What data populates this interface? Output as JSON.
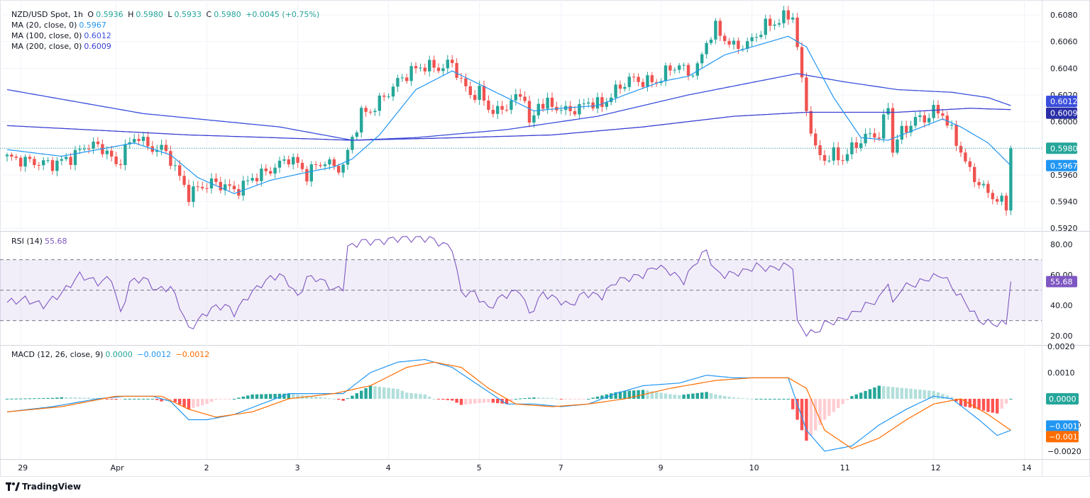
{
  "legend": {
    "symbol": "NZD/USD Spot, 1h",
    "open_label": "O",
    "open": "0.5936",
    "high_label": "H",
    "high": "0.5980",
    "low_label": "L",
    "low": "0.5933",
    "close_label": "C",
    "close": "0.5980",
    "change": "+0.0045 (+0.75%)",
    "ma20_label": "MA (20, close, 0)",
    "ma20_value": "0.5967",
    "ma100_label": "MA (100, close, 0)",
    "ma100_value": "0.6012",
    "ma200_label": "MA (200, close, 0)",
    "ma200_value": "0.6009",
    "rsi_label": "RSI (14)",
    "rsi_value": "55.68",
    "macd_label": "MACD (12, 26, close, 9)",
    "macd_hist": "0.0000",
    "macd_line": "−0.0012",
    "macd_signal": "−0.0012"
  },
  "footer": {
    "brand": "TradingView"
  },
  "colors": {
    "up": "#26a69a",
    "down": "#ef5350",
    "ma20": "#2196f3",
    "ma100": "#3b4fdc",
    "ma200": "#3a3fd1",
    "rsi": "#7e57c2",
    "macd": "#2196f3",
    "signal": "#ff6d00",
    "hist_up_strong": "#26a69a",
    "hist_up_weak": "#b2dfdb",
    "hist_down_strong": "#ff5252",
    "hist_down_weak": "#ffcdd2"
  },
  "chart_data": [
    {
      "type": "candlestick",
      "title": "NZD/USD Spot, 1h",
      "x_tick_labels": [
        "29",
        "Apr",
        "2",
        "3",
        "4",
        "5",
        "7",
        "9",
        "10",
        "11",
        "12",
        "14"
      ],
      "y_ticks": [
        0.592,
        0.594,
        0.596,
        0.598,
        0.6,
        0.602,
        0.604,
        0.606,
        0.608
      ],
      "ylim": [
        0.5918,
        0.6088
      ],
      "price_badges": [
        {
          "label": "0.6012",
          "value": 0.6012,
          "color": "#3b4fdc"
        },
        {
          "label": "0.6009",
          "value": 0.6009,
          "color": "#2a2fa8"
        },
        {
          "label": "0.5980",
          "value": 0.598,
          "color": "#26a69a"
        },
        {
          "label": "0.5967",
          "value": 0.5967,
          "color": "#2196f3"
        }
      ],
      "close_path": [
        [
          0,
          0.5973
        ],
        [
          5,
          0.597
        ],
        [
          10,
          0.5968
        ],
        [
          14,
          0.5973
        ],
        [
          18,
          0.5983
        ],
        [
          20,
          0.5981
        ],
        [
          22,
          0.5978
        ],
        [
          24,
          0.5966
        ],
        [
          26,
          0.598
        ],
        [
          29,
          0.599
        ],
        [
          31,
          0.598
        ],
        [
          34,
          0.598
        ],
        [
          36,
          0.5972
        ],
        [
          38,
          0.5958
        ],
        [
          40,
          0.5945
        ],
        [
          42,
          0.595
        ],
        [
          45,
          0.5954
        ],
        [
          48,
          0.5952
        ],
        [
          50,
          0.5948
        ],
        [
          52,
          0.5952
        ],
        [
          54,
          0.5958
        ],
        [
          57,
          0.5962
        ],
        [
          60,
          0.5968
        ],
        [
          62,
          0.5973
        ],
        [
          64,
          0.5968
        ],
        [
          66,
          0.596
        ],
        [
          68,
          0.5967
        ],
        [
          70,
          0.597
        ],
        [
          72,
          0.5966
        ],
        [
          74,
          0.5966
        ],
        [
          76,
          0.5988
        ],
        [
          78,
          0.6006
        ],
        [
          80,
          0.6008
        ],
        [
          82,
          0.6015
        ],
        [
          84,
          0.6022
        ],
        [
          86,
          0.603
        ],
        [
          89,
          0.6038
        ],
        [
          92,
          0.6042
        ],
        [
          95,
          0.604
        ],
        [
          98,
          0.6044
        ],
        [
          100,
          0.603
        ],
        [
          102,
          0.602
        ],
        [
          104,
          0.6022
        ],
        [
          106,
          0.601
        ],
        [
          108,
          0.6007
        ],
        [
          110,
          0.6012
        ],
        [
          112,
          0.6018
        ],
        [
          114,
          0.602
        ],
        [
          115,
          0.5995
        ],
        [
          117,
          0.6014
        ],
        [
          120,
          0.6012
        ],
        [
          123,
          0.6008
        ],
        [
          126,
          0.601
        ],
        [
          128,
          0.6015
        ],
        [
          131,
          0.6012
        ],
        [
          133,
          0.602
        ],
        [
          135,
          0.6026
        ],
        [
          137,
          0.6032
        ],
        [
          140,
          0.603
        ],
        [
          143,
          0.603
        ],
        [
          146,
          0.604
        ],
        [
          148,
          0.6042
        ],
        [
          150,
          0.6036
        ],
        [
          152,
          0.604
        ],
        [
          154,
          0.606
        ],
        [
          156,
          0.607
        ],
        [
          158,
          0.6062
        ],
        [
          160,
          0.6056
        ],
        [
          163,
          0.6058
        ],
        [
          165,
          0.6065
        ],
        [
          167,
          0.6072
        ],
        [
          169,
          0.6074
        ],
        [
          171,
          0.6078
        ],
        [
          173,
          0.608
        ],
        [
          175,
          0.603
        ],
        [
          176,
          0.601
        ],
        [
          178,
          0.5978
        ],
        [
          180,
          0.5972
        ],
        [
          182,
          0.5975
        ],
        [
          184,
          0.5972
        ],
        [
          186,
          0.598
        ],
        [
          188,
          0.5986
        ],
        [
          190,
          0.599
        ],
        [
          192,
          0.599
        ],
        [
          193,
          0.6
        ],
        [
          194,
          0.6012
        ],
        [
          195,
          0.5978
        ],
        [
          196,
          0.5988
        ],
        [
          198,
          0.5995
        ],
        [
          200,
          0.6002
        ],
        [
          202,
          0.6002
        ],
        [
          204,
          0.6008
        ],
        [
          206,
          0.6006
        ],
        [
          208,
          0.5992
        ],
        [
          210,
          0.5978
        ],
        [
          212,
          0.5962
        ],
        [
          214,
          0.5954
        ],
        [
          216,
          0.5946
        ],
        [
          218,
          0.5942
        ],
        [
          220,
          0.5936
        ],
        [
          221,
          0.598
        ]
      ],
      "ma20": [
        [
          0,
          0.5979
        ],
        [
          12,
          0.5974
        ],
        [
          20,
          0.5979
        ],
        [
          28,
          0.5984
        ],
        [
          36,
          0.5975
        ],
        [
          42,
          0.5958
        ],
        [
          50,
          0.5946
        ],
        [
          58,
          0.5956
        ],
        [
          66,
          0.5962
        ],
        [
          72,
          0.5966
        ],
        [
          76,
          0.5972
        ],
        [
          82,
          0.599
        ],
        [
          90,
          0.6024
        ],
        [
          98,
          0.6038
        ],
        [
          104,
          0.6028
        ],
        [
          110,
          0.6018
        ],
        [
          116,
          0.6008
        ],
        [
          122,
          0.601
        ],
        [
          130,
          0.6012
        ],
        [
          136,
          0.602
        ],
        [
          144,
          0.603
        ],
        [
          150,
          0.6034
        ],
        [
          158,
          0.605
        ],
        [
          166,
          0.6058
        ],
        [
          172,
          0.6064
        ],
        [
          176,
          0.6056
        ],
        [
          182,
          0.6018
        ],
        [
          188,
          0.5988
        ],
        [
          194,
          0.5986
        ],
        [
          200,
          0.5994
        ],
        [
          206,
          0.6002
        ],
        [
          210,
          0.5996
        ],
        [
          216,
          0.5984
        ],
        [
          221,
          0.5967
        ]
      ],
      "ma100": [
        [
          0,
          0.6024
        ],
        [
          30,
          0.6006
        ],
        [
          60,
          0.5996
        ],
        [
          76,
          0.5986
        ],
        [
          90,
          0.5988
        ],
        [
          110,
          0.5994
        ],
        [
          130,
          0.6004
        ],
        [
          150,
          0.602
        ],
        [
          165,
          0.603
        ],
        [
          174,
          0.6036
        ],
        [
          184,
          0.603
        ],
        [
          196,
          0.6024
        ],
        [
          208,
          0.6022
        ],
        [
          216,
          0.6018
        ],
        [
          221,
          0.6012
        ]
      ],
      "ma200": [
        [
          0,
          0.5997
        ],
        [
          40,
          0.599
        ],
        [
          76,
          0.5986
        ],
        [
          100,
          0.5988
        ],
        [
          120,
          0.599
        ],
        [
          140,
          0.5996
        ],
        [
          160,
          0.6004
        ],
        [
          176,
          0.6007
        ],
        [
          196,
          0.6007
        ],
        [
          212,
          0.601
        ],
        [
          221,
          0.6009
        ]
      ]
    },
    {
      "type": "line",
      "title": "RSI (14)",
      "y_ticks": [
        20,
        40,
        60,
        80
      ],
      "ylim": [
        14,
        88
      ],
      "band": [
        30,
        70
      ],
      "midline": 50,
      "rsi": [
        [
          0,
          42
        ],
        [
          4,
          44
        ],
        [
          8,
          40
        ],
        [
          12,
          48
        ],
        [
          16,
          60
        ],
        [
          20,
          55
        ],
        [
          23,
          58
        ],
        [
          25,
          34
        ],
        [
          27,
          55
        ],
        [
          30,
          58
        ],
        [
          33,
          50
        ],
        [
          36,
          52
        ],
        [
          38,
          40
        ],
        [
          40,
          24
        ],
        [
          42,
          30
        ],
        [
          45,
          38
        ],
        [
          48,
          40
        ],
        [
          50,
          35
        ],
        [
          53,
          46
        ],
        [
          56,
          54
        ],
        [
          58,
          58
        ],
        [
          60,
          60
        ],
        [
          62,
          55
        ],
        [
          64,
          45
        ],
        [
          66,
          58
        ],
        [
          68,
          58
        ],
        [
          70,
          55
        ],
        [
          72,
          50
        ],
        [
          74,
          52
        ],
        [
          75,
          78
        ],
        [
          78,
          82
        ],
        [
          82,
          82
        ],
        [
          86,
          84
        ],
        [
          90,
          84
        ],
        [
          93,
          84
        ],
        [
          96,
          80
        ],
        [
          98,
          78
        ],
        [
          100,
          48
        ],
        [
          103,
          48
        ],
        [
          106,
          38
        ],
        [
          109,
          46
        ],
        [
          113,
          50
        ],
        [
          115,
          34
        ],
        [
          118,
          48
        ],
        [
          121,
          44
        ],
        [
          124,
          40
        ],
        [
          127,
          48
        ],
        [
          131,
          46
        ],
        [
          134,
          56
        ],
        [
          137,
          58
        ],
        [
          140,
          60
        ],
        [
          143,
          66
        ],
        [
          146,
          62
        ],
        [
          149,
          56
        ],
        [
          152,
          70
        ],
        [
          154,
          76
        ],
        [
          156,
          62
        ],
        [
          158,
          60
        ],
        [
          162,
          62
        ],
        [
          165,
          66
        ],
        [
          168,
          64
        ],
        [
          171,
          66
        ],
        [
          173,
          66
        ],
        [
          174,
          28
        ],
        [
          176,
          22
        ],
        [
          178,
          22
        ],
        [
          180,
          28
        ],
        [
          183,
          30
        ],
        [
          186,
          34
        ],
        [
          189,
          40
        ],
        [
          192,
          44
        ],
        [
          194,
          56
        ],
        [
          195,
          40
        ],
        [
          197,
          52
        ],
        [
          200,
          54
        ],
        [
          203,
          58
        ],
        [
          206,
          60
        ],
        [
          208,
          52
        ],
        [
          211,
          42
        ],
        [
          214,
          30
        ],
        [
          217,
          28
        ],
        [
          220,
          28
        ],
        [
          221,
          55.68
        ]
      ]
    },
    {
      "type": "line",
      "title": "MACD (12, 26, close, 9)",
      "y_ticks": [
        -0.002,
        -0.001,
        0.001,
        0.002
      ],
      "ylim": [
        -0.0023,
        0.002
      ],
      "macd": [
        [
          0,
          -0.0005
        ],
        [
          10,
          -0.0003
        ],
        [
          20,
          0.0
        ],
        [
          26,
          0.0001
        ],
        [
          32,
          0.0001
        ],
        [
          36,
          -0.0001
        ],
        [
          40,
          -0.0008
        ],
        [
          44,
          -0.0008
        ],
        [
          50,
          -0.0006
        ],
        [
          56,
          -0.0002
        ],
        [
          62,
          0.0002
        ],
        [
          68,
          0.0002
        ],
        [
          74,
          0.0002
        ],
        [
          80,
          0.001
        ],
        [
          86,
          0.0014
        ],
        [
          92,
          0.0015
        ],
        [
          98,
          0.0012
        ],
        [
          104,
          0.0005
        ],
        [
          110,
          -0.0002
        ],
        [
          116,
          -0.0002
        ],
        [
          122,
          -0.0003
        ],
        [
          128,
          -0.0002
        ],
        [
          134,
          0.0002
        ],
        [
          140,
          0.0005
        ],
        [
          148,
          0.0006
        ],
        [
          154,
          0.0009
        ],
        [
          160,
          0.0008
        ],
        [
          166,
          0.0008
        ],
        [
          172,
          0.0008
        ],
        [
          176,
          -0.0012
        ],
        [
          180,
          -0.002
        ],
        [
          186,
          -0.0018
        ],
        [
          192,
          -0.001
        ],
        [
          198,
          -0.0004
        ],
        [
          204,
          0.0001
        ],
        [
          208,
          0.0
        ],
        [
          214,
          -0.0008
        ],
        [
          218,
          -0.0014
        ],
        [
          221,
          -0.0012
        ]
      ],
      "signal": [
        [
          0,
          -0.0005
        ],
        [
          12,
          -0.0003
        ],
        [
          24,
          0.0001
        ],
        [
          34,
          0.0001
        ],
        [
          40,
          -0.0004
        ],
        [
          46,
          -0.0007
        ],
        [
          54,
          -0.0005
        ],
        [
          62,
          0.0
        ],
        [
          72,
          0.0002
        ],
        [
          80,
          0.0005
        ],
        [
          88,
          0.0012
        ],
        [
          94,
          0.0014
        ],
        [
          100,
          0.0012
        ],
        [
          106,
          0.0004
        ],
        [
          112,
          -0.0002
        ],
        [
          120,
          -0.0003
        ],
        [
          128,
          -0.0002
        ],
        [
          136,
          0.0
        ],
        [
          146,
          0.0004
        ],
        [
          156,
          0.0007
        ],
        [
          164,
          0.0008
        ],
        [
          172,
          0.0008
        ],
        [
          176,
          0.0004
        ],
        [
          180,
          -0.0012
        ],
        [
          186,
          -0.0019
        ],
        [
          192,
          -0.0015
        ],
        [
          198,
          -0.0008
        ],
        [
          204,
          -0.0002
        ],
        [
          210,
          0.0
        ],
        [
          216,
          -0.0006
        ],
        [
          221,
          -0.0012
        ]
      ]
    }
  ]
}
